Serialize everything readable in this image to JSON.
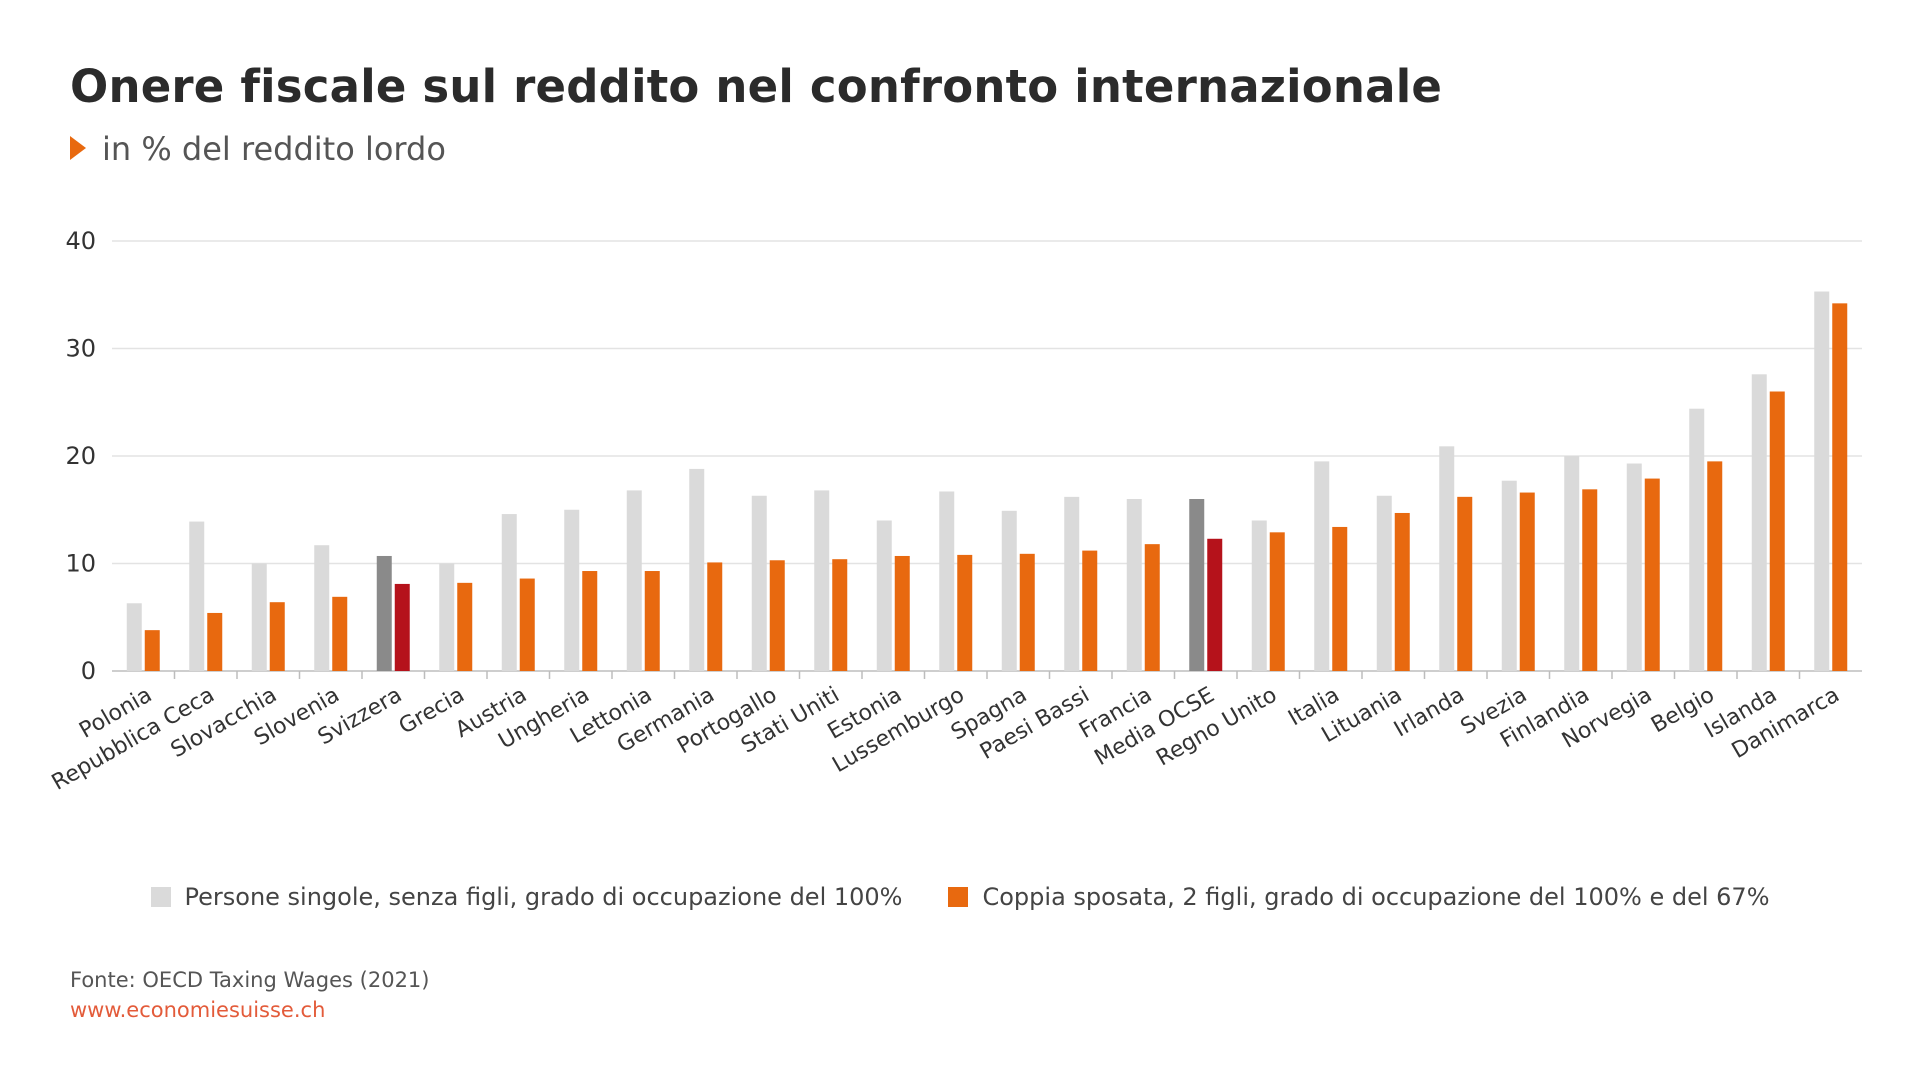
{
  "title": "Onere fiscale sul reddito nel confronto internazionale",
  "subtitle": "in % del reddito lordo",
  "source": "Fonte: OECD Taxing Wages (2021)",
  "website": "www.economiesuisse.ch",
  "colors": {
    "single": "#dadada",
    "couple": "#e8690f",
    "single_highlight": "#8a8a8a",
    "couple_highlight": "#b5121b",
    "accent": "#e8690f"
  },
  "chart_data": {
    "type": "bar",
    "ylim": [
      0,
      40
    ],
    "yticks": [
      0,
      10,
      20,
      30,
      40
    ],
    "grid": true,
    "legend_position": "bottom-center",
    "categories": [
      "Polonia",
      "Repubblica Ceca",
      "Slovacchia",
      "Slovenia",
      "Svizzera",
      "Grecia",
      "Austria",
      "Ungheria",
      "Lettonia",
      "Germania",
      "Portogallo",
      "Stati Uniti",
      "Estonia",
      "Lussemburgo",
      "Spagna",
      "Paesi Bassi",
      "Francia",
      "Media OCSE",
      "Regno Unito",
      "Italia",
      "Lituania",
      "Irlanda",
      "Svezia",
      "Finlandia",
      "Norvegia",
      "Belgio",
      "Islanda",
      "Danimarca"
    ],
    "highlighted": [
      "Svizzera",
      "Media OCSE"
    ],
    "series": [
      {
        "name": "Persone singole, senza figli, grado di occupazione del 100%",
        "values": [
          6.3,
          13.9,
          10.0,
          11.7,
          10.7,
          10.0,
          14.6,
          15.0,
          16.8,
          18.8,
          16.3,
          16.8,
          14.0,
          16.7,
          14.9,
          16.2,
          16.0,
          16.0,
          14.0,
          19.5,
          16.3,
          20.9,
          17.7,
          20.0,
          19.3,
          24.4,
          27.6,
          35.3
        ]
      },
      {
        "name": "Coppia sposata, 2 figli, grado di occupazione del 100% e del 67%",
        "values": [
          3.8,
          5.4,
          6.4,
          6.9,
          8.1,
          8.2,
          8.6,
          9.3,
          9.3,
          10.1,
          10.3,
          10.4,
          10.7,
          10.8,
          10.9,
          11.2,
          11.8,
          12.3,
          12.9,
          13.4,
          14.7,
          16.2,
          16.6,
          16.9,
          17.9,
          19.5,
          26.0,
          34.2
        ]
      }
    ]
  }
}
